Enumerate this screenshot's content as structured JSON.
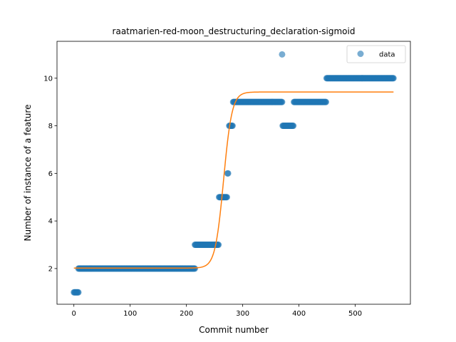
{
  "chart_data": {
    "type": "scatter",
    "title": "raatmarien-red-moon_destructuring_declaration-sigmoid",
    "xlabel": "Commit number",
    "ylabel": "Number of instance of a feature",
    "xlim": [
      -30,
      598
    ],
    "ylim": [
      0.5,
      11.55
    ],
    "xticks": [
      0,
      100,
      200,
      300,
      400,
      500
    ],
    "yticks": [
      2,
      4,
      6,
      8,
      10
    ],
    "grid": false,
    "legend": {
      "position": "top-right",
      "entries": [
        "data"
      ]
    },
    "series": [
      {
        "name": "data",
        "kind": "scatter",
        "color": "#1f77b4",
        "alpha": 0.6,
        "runs": [
          {
            "x_start": 0,
            "x_end": 8,
            "y": 1
          },
          {
            "x_start": 8,
            "x_end": 215,
            "y": 2
          },
          {
            "x_start": 215,
            "x_end": 257,
            "y": 3
          },
          {
            "x_start": 258,
            "x_end": 272,
            "y": 5
          },
          {
            "x_start": 273,
            "x_end": 274,
            "y": 6
          },
          {
            "x_start": 276,
            "x_end": 282,
            "y": 8
          },
          {
            "x_start": 283,
            "x_end": 370,
            "y": 9
          },
          {
            "x_start": 370,
            "x_end": 370,
            "y": 11
          },
          {
            "x_start": 371,
            "x_end": 390,
            "y": 8
          },
          {
            "x_start": 391,
            "x_end": 448,
            "y": 9
          },
          {
            "x_start": 449,
            "x_end": 568,
            "y": 10
          }
        ]
      },
      {
        "kind": "line",
        "color": "#ff7f0e",
        "sigmoid": {
          "lower": 2.02,
          "upper": 9.42,
          "midpoint": 266,
          "scale": 7.5
        },
        "x_range": [
          0,
          568
        ]
      }
    ]
  }
}
